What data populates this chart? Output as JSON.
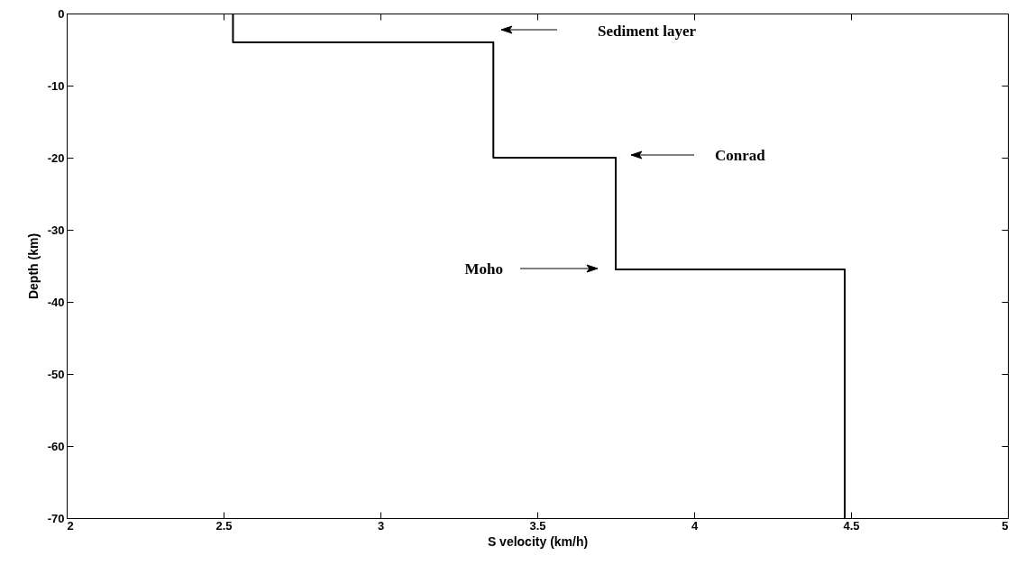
{
  "chart_data": {
    "type": "line",
    "xlabel": "S velocity (km/h)",
    "ylabel": "Depth (km)",
    "x": [
      2.53,
      2.53,
      3.36,
      3.36,
      3.75,
      3.75,
      4.48,
      4.48
    ],
    "series": [
      {
        "color": "#000000",
        "values": [
          0,
          -4,
          -4,
          -20,
          -20,
          -35.5,
          -35.5,
          -70
        ]
      }
    ],
    "xlim": [
      2,
      5
    ],
    "xticks": [
      2,
      2.5,
      3,
      3.5,
      4,
      4.5,
      5
    ],
    "ylim": [
      -70,
      0
    ],
    "yticks": [
      -70,
      -60,
      -50,
      -40,
      -30,
      -20,
      -10,
      0
    ],
    "grid": false,
    "marker": "none",
    "line_style": "solid",
    "annotations": [
      "Sediment layer",
      "Conrad",
      "Moho"
    ]
  }
}
